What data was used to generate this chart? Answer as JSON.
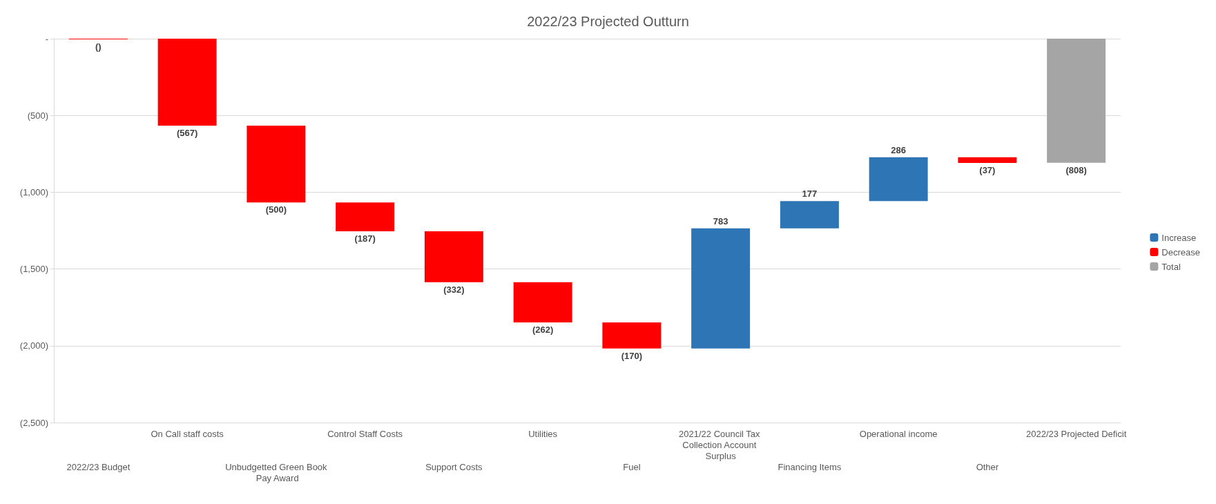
{
  "chart_data": {
    "type": "bar",
    "title": "2022/23 Projected Outturn",
    "categories": [
      "2022/23 Budget",
      "On Call staff costs",
      "Unbudgetted Green Book Pay Award",
      "Control Staff Costs",
      "Support Costs",
      "Utilities",
      "Fuel",
      "2021/22 Council Tax Collection Account Surplus",
      "Financing Items",
      "Operational income",
      "Other",
      "2022/23 Projected Deficit"
    ],
    "series": [
      {
        "name": "Increase",
        "color": "#2e75b6",
        "values": [
          null,
          null,
          null,
          null,
          null,
          null,
          null,
          783,
          177,
          286,
          null,
          null
        ],
        "base": [
          null,
          null,
          null,
          null,
          null,
          null,
          null,
          -2018,
          -1235,
          -1058,
          null,
          null
        ]
      },
      {
        "name": "Decrease",
        "color": "#ff0000",
        "values": [
          0,
          -567,
          -500,
          -187,
          -332,
          -262,
          -170,
          null,
          null,
          null,
          -37,
          null
        ],
        "base": [
          0,
          0,
          -567,
          -1067,
          -1254,
          -1586,
          -1848,
          null,
          null,
          null,
          -772,
          null
        ]
      },
      {
        "name": "Total",
        "color": "#a5a5a5",
        "values": [
          null,
          null,
          null,
          null,
          null,
          null,
          null,
          null,
          null,
          null,
          null,
          -808
        ],
        "base": [
          null,
          null,
          null,
          null,
          null,
          null,
          null,
          null,
          null,
          null,
          null,
          0
        ]
      }
    ],
    "value_labels": [
      "()",
      "(567)",
      "(500)",
      "(187)",
      "(332)",
      "(262)",
      "(170)",
      "783",
      "177",
      "286",
      "(37)",
      "(808)"
    ],
    "ylim": [
      -2500,
      0
    ],
    "yticks": [
      {
        "value": -2500,
        "label": "(2,500)"
      },
      {
        "value": -2000,
        "label": "(2,000)"
      },
      {
        "value": -1500,
        "label": "(1,500)"
      },
      {
        "value": -1000,
        "label": "(1,000)"
      },
      {
        "value": -500,
        "label": "(500)"
      },
      {
        "value": 0,
        "label": "-"
      }
    ],
    "grid": "y",
    "legend": "right"
  }
}
